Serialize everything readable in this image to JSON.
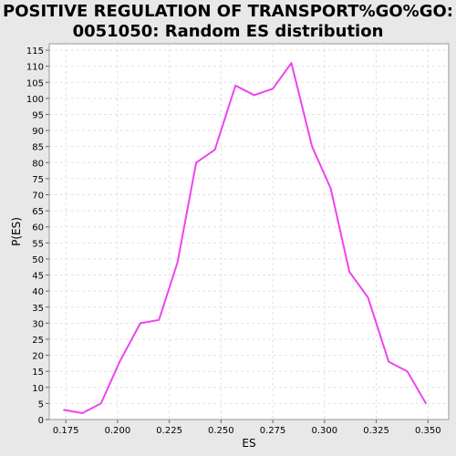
{
  "chart_data": {
    "type": "line",
    "title_lines": [
      "POSITIVE REGULATION OF TRANSPORT%GO%GO:",
      "0051050: Random ES distribution"
    ],
    "xlabel": "ES",
    "ylabel": "P(ES)",
    "xlim": [
      0.167,
      0.36
    ],
    "ylim": [
      0,
      117
    ],
    "x_ticks": [
      0.175,
      0.2,
      0.225,
      0.25,
      0.275,
      0.3,
      0.325,
      0.35
    ],
    "x_tick_labels": [
      "0.175",
      "0.200",
      "0.225",
      "0.250",
      "0.275",
      "0.300",
      "0.325",
      "0.350"
    ],
    "y_ticks": [
      0,
      5,
      10,
      15,
      20,
      25,
      30,
      35,
      40,
      45,
      50,
      55,
      60,
      65,
      70,
      75,
      80,
      85,
      90,
      95,
      100,
      105,
      110,
      115
    ],
    "grid": true,
    "series": [
      {
        "color": "#ee44ee",
        "x": [
          0.174,
          0.183,
          0.192,
          0.201,
          0.211,
          0.22,
          0.229,
          0.238,
          0.247,
          0.257,
          0.266,
          0.275,
          0.284,
          0.294,
          0.303,
          0.312,
          0.321,
          0.331,
          0.34,
          0.349
        ],
        "y": [
          3,
          2,
          5,
          18,
          30,
          31,
          49,
          80,
          84,
          104,
          101,
          103,
          111,
          85,
          72,
          46,
          38,
          18,
          15,
          5
        ]
      }
    ]
  }
}
